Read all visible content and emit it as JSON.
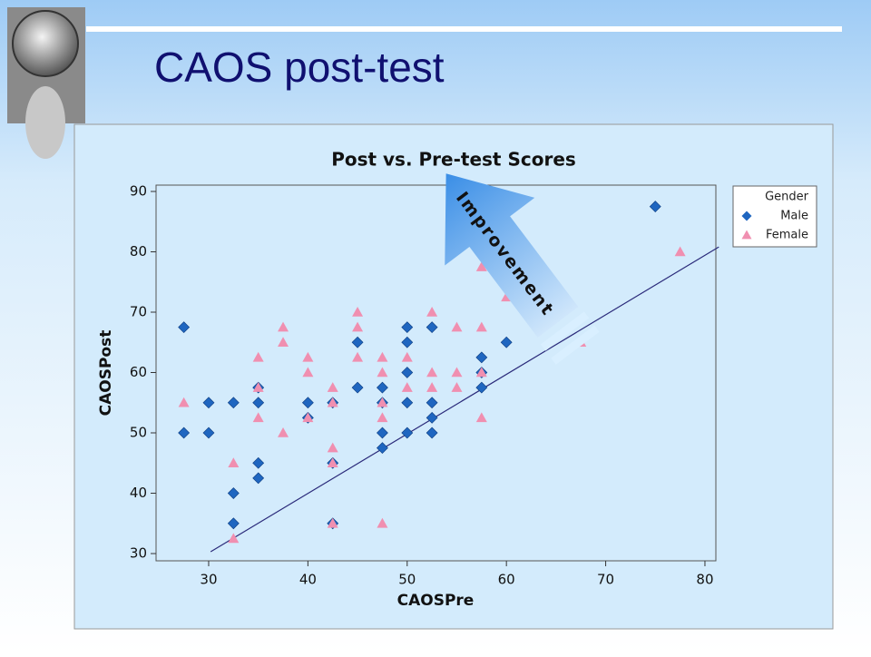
{
  "slide_title": "CAOS post-test",
  "chart_data": {
    "type": "scatter",
    "title": "Post vs. Pre-test Scores",
    "x_label": "CAOSPre",
    "y_label": "CAOSPost",
    "xlim": [
      24.7,
      81.1
    ],
    "ylim": [
      28.8,
      91.05
    ],
    "xticks": [
      30,
      40,
      50,
      60,
      70,
      80
    ],
    "yticks": [
      30,
      40,
      50,
      60,
      70,
      80,
      90
    ],
    "legend_title": "Gender",
    "legend": "upper right",
    "annotation": "Improvement",
    "reference_line": {
      "x": [
        30.2,
        81.4
      ],
      "y": [
        30.3,
        80.8
      ],
      "color": "#2a2a7a"
    },
    "series": [
      {
        "name": "Male",
        "color": "#1f66c0",
        "marker": "diamond",
        "x": [
          27.5,
          27.5,
          30,
          30,
          32.5,
          32.5,
          32.5,
          35,
          35,
          35,
          35,
          40,
          40,
          42.5,
          42.5,
          42.5,
          45,
          45,
          47.5,
          47.5,
          47.5,
          47.5,
          50,
          50,
          50,
          50,
          50,
          52.5,
          52.5,
          52.5,
          52.5,
          57.5,
          57.5,
          57.5,
          60,
          75
        ],
        "values": [
          67.5,
          50,
          55,
          50,
          55,
          40,
          35,
          57.5,
          55,
          45,
          42.5,
          55,
          52.5,
          55,
          45,
          35,
          65,
          57.5,
          57.5,
          55,
          50,
          47.5,
          67.5,
          65,
          60,
          55,
          50,
          67.5,
          55,
          52.5,
          50,
          62.5,
          60,
          57.5,
          65,
          87.5
        ]
      },
      {
        "name": "Female",
        "color": "#f08fb0",
        "marker": "triangle",
        "x": [
          27.5,
          32.5,
          32.5,
          35,
          35,
          35,
          37.5,
          37.5,
          37.5,
          40,
          40,
          40,
          42.5,
          42.5,
          42.5,
          42.5,
          42.5,
          45,
          45,
          45,
          47.5,
          47.5,
          47.5,
          47.5,
          47.5,
          50,
          50,
          52.5,
          52.5,
          52.5,
          55,
          55,
          55,
          57.5,
          57.5,
          57.5,
          57.5,
          60,
          67.5,
          77.5
        ],
        "values": [
          55,
          45,
          32.5,
          62.5,
          57.5,
          52.5,
          67.5,
          65,
          50,
          62.5,
          60,
          52.5,
          57.5,
          55,
          47.5,
          45,
          35,
          70,
          67.5,
          62.5,
          62.5,
          60,
          55,
          52.5,
          35,
          62.5,
          57.5,
          70,
          60,
          57.5,
          67.5,
          60,
          57.5,
          67.5,
          60,
          52.5,
          77.5,
          72.5,
          65,
          80
        ]
      }
    ]
  }
}
